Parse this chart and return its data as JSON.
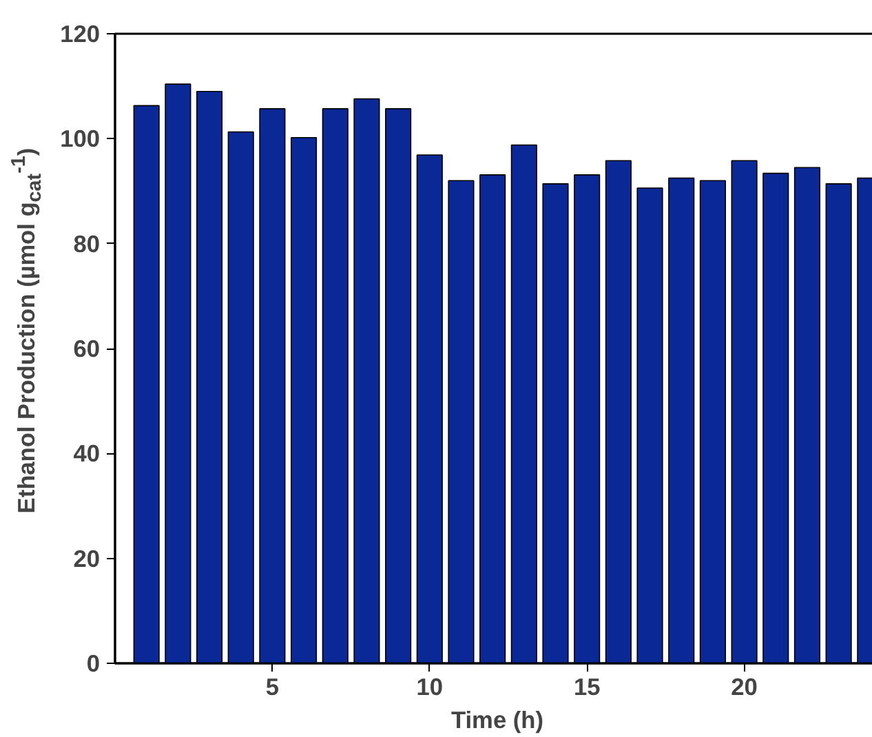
{
  "chart_data": {
    "type": "bar",
    "xlabel": "Time (h)",
    "ylabel": "Ethanol Production (µmol g$_{cat}$$^{-1}$)",
    "x": [
      1,
      2,
      3,
      4,
      5,
      6,
      7,
      8,
      9,
      10,
      11,
      12,
      13,
      14,
      15,
      16,
      17,
      18,
      19,
      20,
      21,
      22,
      23,
      24
    ],
    "values": [
      106.3,
      110.4,
      109.0,
      101.3,
      105.7,
      100.2,
      105.7,
      107.6,
      105.7,
      96.9,
      92.0,
      93.1,
      98.8,
      91.4,
      93.1,
      95.8,
      90.6,
      92.5,
      92.0,
      95.8,
      93.4,
      94.5,
      91.4,
      92.5
    ],
    "color": "#0a2896",
    "xlim": [
      0,
      24.3
    ],
    "ylim": [
      0,
      120
    ],
    "xticks": [
      5,
      10,
      15,
      20
    ],
    "yticks": [
      0,
      20,
      40,
      60,
      80,
      100,
      120
    ],
    "grid": false
  }
}
